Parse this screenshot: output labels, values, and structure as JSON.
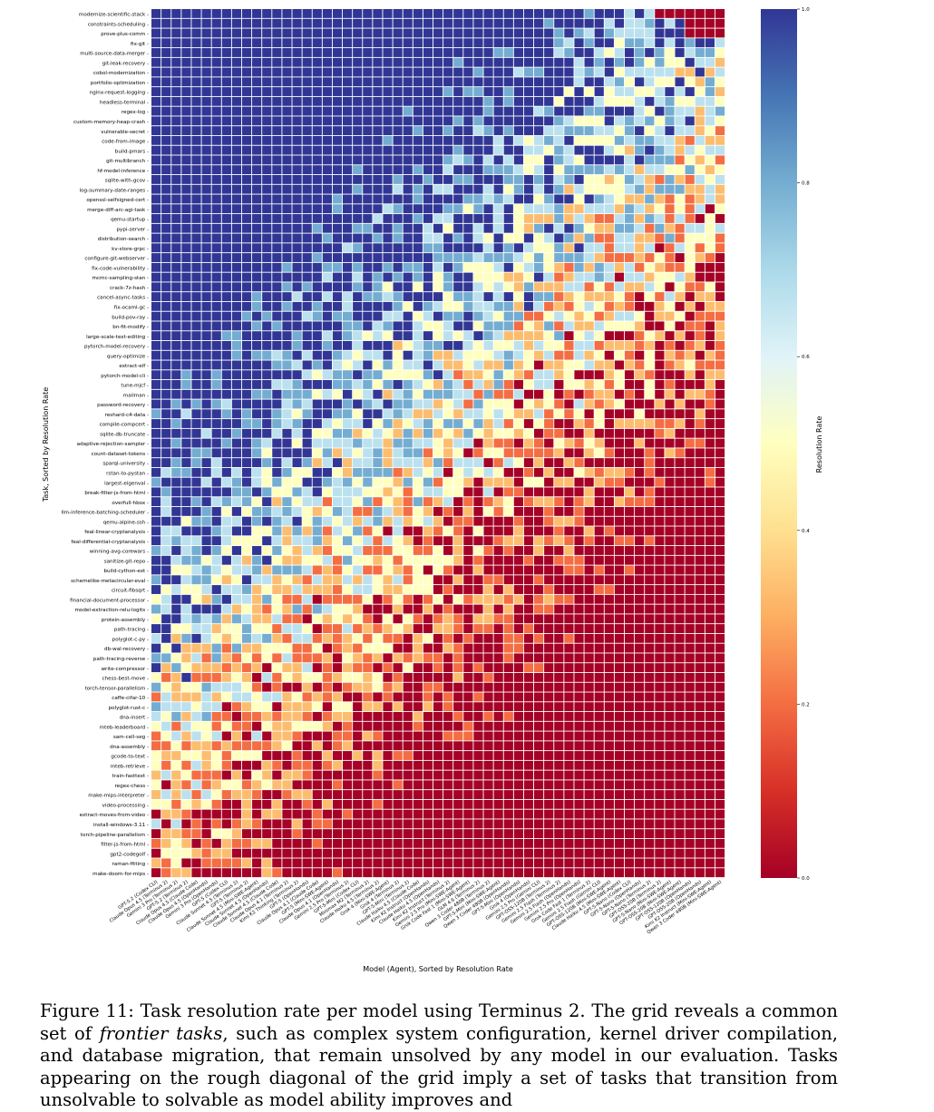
{
  "chart_data": {
    "type": "heatmap",
    "xlabel": "Model (Agent), Sorted by Resolution Rate",
    "ylabel": "Task, Sorted by Resolution Rate",
    "colorbar_label": "Resolution Rate",
    "colorbar_ticks": [
      "1.0",
      "0.8",
      "0.6",
      "0.4",
      "0.2",
      "0.0"
    ],
    "colorbar_tick_values": [
      1.0,
      0.8,
      0.6,
      0.4,
      0.2,
      0.0
    ],
    "colormap": [
      "#313695",
      "#4575b4",
      "#74add1",
      "#abd9e9",
      "#e0f3f8",
      "#ffffbf",
      "#fee090",
      "#fdae61",
      "#f46d43",
      "#d73027",
      "#a50026"
    ],
    "value_range": [
      0,
      1
    ],
    "tasks": [
      "modernize-scientific-stack",
      "constraints-scheduling",
      "prove-plus-comm",
      "fix-git",
      "multi-source-data-merger",
      "git-leak-recovery",
      "cobol-modernization",
      "portfolio-optimization",
      "nginx-request-logging",
      "headless-terminal",
      "regex-log",
      "custom-memory-heap-crash",
      "vulnerable-secret",
      "code-from-image",
      "build-pmars",
      "git-multibranch",
      "hf-model-inference",
      "sqlite-with-gcov",
      "log-summary-date-ranges",
      "openssl-selfsigned-cert",
      "merge-diff-arc-agi-task",
      "qemu-startup",
      "pypi-server",
      "distribution-search",
      "kv-store-grpc",
      "configure-git-webserver",
      "fix-code-vulnerability",
      "mcmc-sampling-stan",
      "crack-7z-hash",
      "cancel-async-tasks",
      "fix-ocaml-gc",
      "build-pov-ray",
      "bn-fit-modify",
      "large-scale-text-editing",
      "pytorch-model-recovery",
      "query-optimize",
      "extract-elf",
      "pytorch-model-cli",
      "tune-mjcf",
      "mailman",
      "password-recovery",
      "reshard-c4-data",
      "compile-compcert",
      "sqlite-db-truncate",
      "adaptive-rejection-sampler",
      "count-dataset-tokens",
      "sparql-university",
      "rstan-to-pystan",
      "largest-eigenval",
      "break-filter-js-from-html",
      "overfull-hbox",
      "llm-inference-batching-scheduler",
      "qemu-alpine-ssh",
      "feal-linear-cryptanalysis",
      "feal-differential-cryptanalysis",
      "winning-avg-corewars",
      "sanitize-git-repo",
      "build-cython-ext",
      "schemelike-metacircular-eval",
      "circuit-fibsqrt",
      "financial-document-processor",
      "model-extraction-relu-logits",
      "protein-assembly",
      "path-tracing",
      "polyglot-c-py",
      "db-wal-recovery",
      "path-tracing-reverse",
      "write-compressor",
      "chess-best-move",
      "torch-tensor-parallelism",
      "caffe-cifar-10",
      "polyglot-rust-c",
      "dna-insert",
      "mteb-leaderboard",
      "sam-cell-seg",
      "dna-assembly",
      "gcode-to-text",
      "mteb-retrieve",
      "train-fasttext",
      "regex-chess",
      "make-mips-interpreter",
      "video-processing",
      "extract-moves-from-video",
      "install-windows-3.11",
      "torch-pipeline-parallelism",
      "filter-js-from-html",
      "gpt2-codegolf",
      "raman-fitting",
      "make-doom-for-mips"
    ],
    "models": [
      "GPT-5.2 (Codex CLI)",
      "Claude Opus 4.5 (Terminus 2)",
      "Gemini 3 Pro (Terminus 2)",
      "GPT-5.2 (Terminus 2)",
      "Claude Opus 4.5 (Claude Code)",
      "Claude Opus 4.5 (OpenHands)",
      "Gemini 3 Pro (OpenHands)",
      "GPT-5 (Codex CLI)",
      "Claude Sonnet 4.5 (Terminus 2)",
      "GPT-5 (Terminus 2)",
      "Claude Sonnet 4.5 (Mini-SWE-Agent)",
      "Claude Sonnet 4.5 (OpenHands)",
      "Claude Sonnet 4.5 (Claude Code)",
      "Claude Opus 4.1 (Terminus 2)",
      "Kimi K2 Thinking (Terminus 2)",
      "GPT-5 (OpenHands)",
      "Claude Opus 4.1 (Claude Code)",
      "GPT-5 (Mini-SWE-Agent)",
      "Claude Opus 4.1 (OpenHands)",
      "Gemini 2.5 Pro (Terminus 2)",
      "GPT-5-Mini (Codex CLI)",
      "Minimax M2 (Terminus 2)",
      "Claude Haiku 4.5 (Terminus 2)",
      "Grok 4 (Mini-SWE-Agent)",
      "Grok 4 (Terminus 2)",
      "GPT-5-Mini (Terminus 2)",
      "Claude Haiku 4.5 (Claude Code)",
      "Kimi K2 Instruct (OpenHands)",
      "Claude Haiku 4.5 (OpenHands)",
      "Kimi K2 Instruct (Terminus 2)",
      "Gemini 2.5 Pro (Mini-SWE-Agent)",
      "Grok Code Fast 1 (Mini-SWE-Agent)",
      "GLM 4.6 (Terminus 2)",
      "Qwen 3 Coder 480B (Terminus 2)",
      "GPT-5-Mini (Mini-SWE-Agent)",
      "Qwen 3 Coder 480B (OpenHands)",
      "GPT-5-Mini (OpenHands)",
      "Grok 4 (OpenHands)",
      "Gemini 2.5 Pro (Gemini CLI)",
      "GPT-OSS-120B (Terminus 2)",
      "Gemini 2.5 Flash (Terminus 2)",
      "Gemini 2.5 Flash (OpenHands)",
      "Gemini 2.5 Pro (OpenHands)",
      "Grok Code Fast 1 (Terminus 2)",
      "Gemini 2.5 Flash (Gemini CLI)",
      "GPT-OSS-120B (Mini-SWE-Agent)",
      "Claude Haiku 4.5 (Mini-SWE-Agent)",
      "GPT-5-Nano (Codex CLI)",
      "GPT-5-Nano (OpenHands)",
      "GPT-5-Nano (Terminus 2)",
      "GPT-OSS-20B (Terminus 2)",
      "GPT-5-Nano (Mini-SWE-Agent)",
      "GPT-OSS-20B (Mini-SWE-Agent)",
      "GPT-OSS-120B (OpenHands)",
      "GPT-OSS-20B (OpenHands)",
      "Kimi K2 Instruct (Mini-SWE-Agent)",
      "Qwen 3 Coder 480B (Mini-SWE-Agent)"
    ],
    "value_generation": "approximate: high rates for easy tasks / strong models, falling toward 0 along the diagonal"
  },
  "caption": {
    "lead": "Figure 11: Task resolution rate per model using Terminus 2. The grid reveals a common set of ",
    "emph": "frontier tasks",
    "rest": ", such as complex system configuration, kernel driver compilation, and database migration, that remain unsolved by any model in our evaluation. Tasks appearing on the rough diagonal of the grid imply a set of tasks that transition from unsolvable to solvable as model ability improves and"
  }
}
